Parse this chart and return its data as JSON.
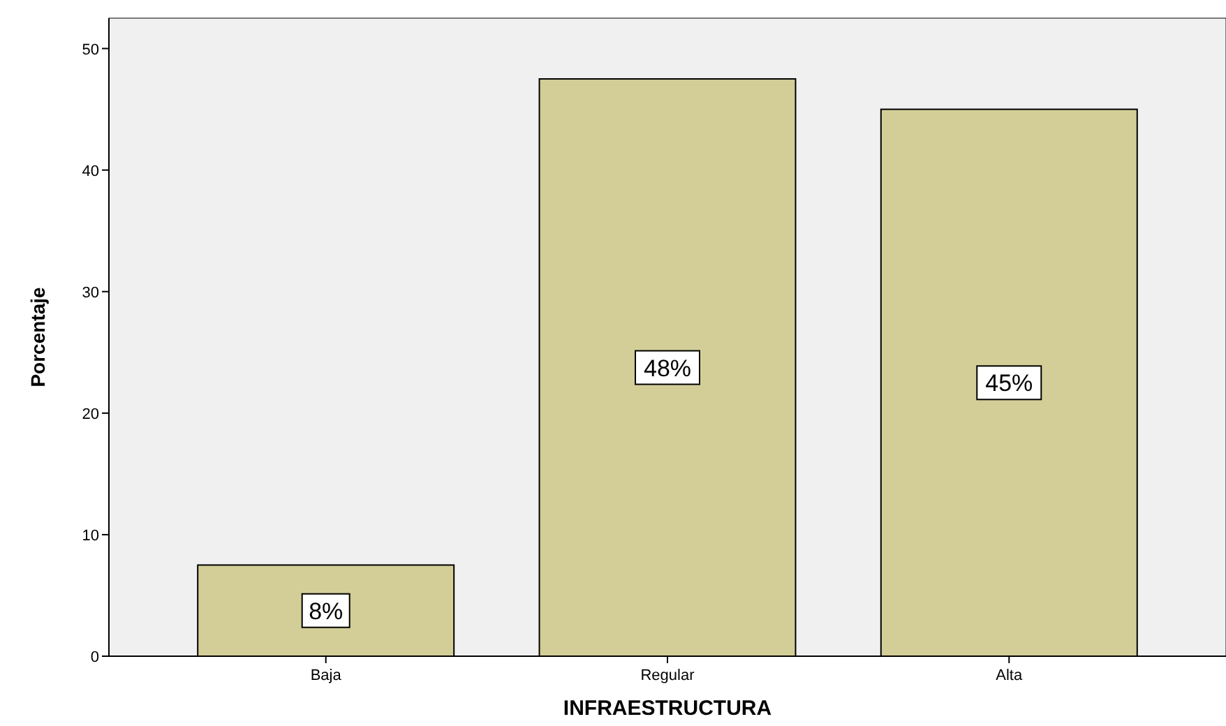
{
  "chart_data": {
    "type": "bar",
    "xlabel": "INFRAESTRUCTURA",
    "ylabel": "Porcentaje",
    "categories": [
      "Baja",
      "Regular",
      "Alta"
    ],
    "values": [
      7.5,
      47.5,
      45
    ],
    "value_labels": [
      "8%",
      "48%",
      "45%"
    ],
    "color": "#d3ce97",
    "ylim": [
      0,
      52.5
    ],
    "yticks": [
      0,
      10,
      20,
      30,
      40,
      50
    ],
    "grid": false
  }
}
